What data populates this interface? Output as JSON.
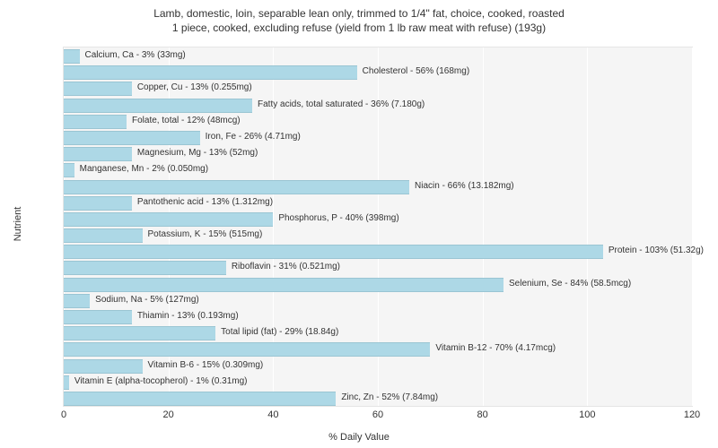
{
  "chart": {
    "type": "bar",
    "orientation": "horizontal",
    "title_line1": "Lamb, domestic, loin, separable lean only, trimmed to 1/4\" fat, choice, cooked, roasted",
    "title_line2": "1 piece, cooked, excluding refuse (yield from 1 lb raw meat with refuse) (193g)",
    "title_fontsize": 12,
    "title_color": "#333333",
    "x_axis_label": "% Daily Value",
    "y_axis_label": "Nutrient",
    "axis_label_fontsize": 11,
    "tick_fontsize": 11,
    "bar_label_fontsize": 10,
    "xlim": [
      0,
      120
    ],
    "x_ticks": [
      0,
      20,
      40,
      60,
      80,
      100,
      120
    ],
    "background_color": "#ffffff",
    "plot_bg_color": "#f5f5f5",
    "grid_color": "#ffffff",
    "bar_color": "#add8e6",
    "bar_border_color": "#9ac5d3",
    "plot_border_color": "#e5e5e5",
    "nutrients": [
      {
        "label": "Calcium, Ca - 3% (33mg)",
        "value": 3
      },
      {
        "label": "Cholesterol - 56% (168mg)",
        "value": 56
      },
      {
        "label": "Copper, Cu - 13% (0.255mg)",
        "value": 13
      },
      {
        "label": "Fatty acids, total saturated - 36% (7.180g)",
        "value": 36
      },
      {
        "label": "Folate, total - 12% (48mcg)",
        "value": 12
      },
      {
        "label": "Iron, Fe - 26% (4.71mg)",
        "value": 26
      },
      {
        "label": "Magnesium, Mg - 13% (52mg)",
        "value": 13
      },
      {
        "label": "Manganese, Mn - 2% (0.050mg)",
        "value": 2
      },
      {
        "label": "Niacin - 66% (13.182mg)",
        "value": 66
      },
      {
        "label": "Pantothenic acid - 13% (1.312mg)",
        "value": 13
      },
      {
        "label": "Phosphorus, P - 40% (398mg)",
        "value": 40
      },
      {
        "label": "Potassium, K - 15% (515mg)",
        "value": 15
      },
      {
        "label": "Protein - 103% (51.32g)",
        "value": 103
      },
      {
        "label": "Riboflavin - 31% (0.521mg)",
        "value": 31
      },
      {
        "label": "Selenium, Se - 84% (58.5mcg)",
        "value": 84
      },
      {
        "label": "Sodium, Na - 5% (127mg)",
        "value": 5
      },
      {
        "label": "Thiamin - 13% (0.193mg)",
        "value": 13
      },
      {
        "label": "Total lipid (fat) - 29% (18.84g)",
        "value": 29
      },
      {
        "label": "Vitamin B-12 - 70% (4.17mcg)",
        "value": 70
      },
      {
        "label": "Vitamin B-6 - 15% (0.309mg)",
        "value": 15
      },
      {
        "label": "Vitamin E (alpha-tocopherol) - 1% (0.31mg)",
        "value": 1
      },
      {
        "label": "Zinc, Zn - 52% (7.84mg)",
        "value": 52
      }
    ]
  }
}
